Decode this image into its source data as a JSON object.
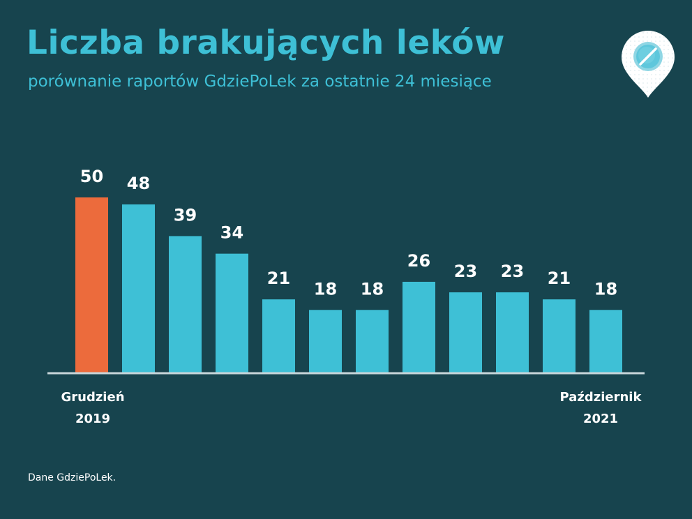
{
  "title": "Liczba brakujących leków",
  "subtitle": "porównanie raportów GdziePoLek za ostatnie 24 miesiące",
  "source": "Dane GdziePoLek.",
  "logo_icon": "pill-location-pin-icon",
  "colors": {
    "background": "#17444e",
    "accent": "#3ec0d6",
    "highlight": "#ec6b3c",
    "text": "#ffffff",
    "baseline": "#c8d6da"
  },
  "chart_data": {
    "type": "bar",
    "values": [
      50,
      48,
      39,
      34,
      21,
      18,
      18,
      26,
      23,
      23,
      21,
      18
    ],
    "highlight_index": 0,
    "ylim": [
      0,
      50
    ],
    "data_labels": true,
    "grid": false,
    "legend": "none",
    "axis_labels": {
      "start": [
        "Grudzień",
        "2019"
      ],
      "end": [
        "Październik",
        "2021"
      ]
    }
  }
}
